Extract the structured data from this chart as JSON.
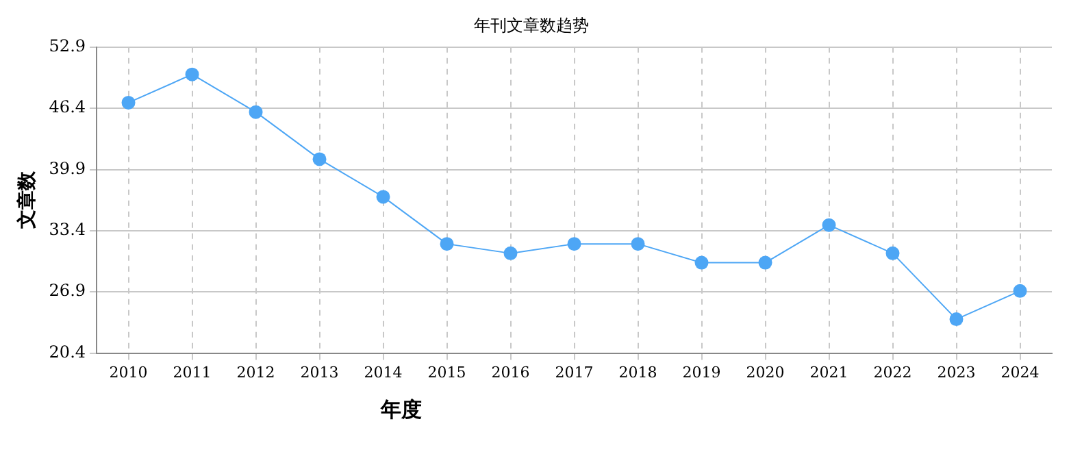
{
  "chart_data": {
    "type": "line",
    "title": "年刊文章数趋势",
    "xlabel": "年度",
    "ylabel": "文章数",
    "categories": [
      "2010",
      "2011",
      "2012",
      "2013",
      "2014",
      "2015",
      "2016",
      "2017",
      "2018",
      "2019",
      "2020",
      "2021",
      "2022",
      "2023",
      "2024"
    ],
    "series": [
      {
        "color": "#4da6f5",
        "values": [
          47,
          50,
          46,
          41,
          37,
          32,
          31,
          32,
          32,
          30,
          30,
          34,
          31,
          24,
          27
        ]
      }
    ],
    "ylim": [
      20.4,
      52.9
    ],
    "yticks": [
      20.4,
      26.9,
      33.4,
      39.9,
      46.4,
      52.9
    ],
    "grid": true,
    "marker": "circle",
    "line_style": "solid",
    "legend": false
  }
}
